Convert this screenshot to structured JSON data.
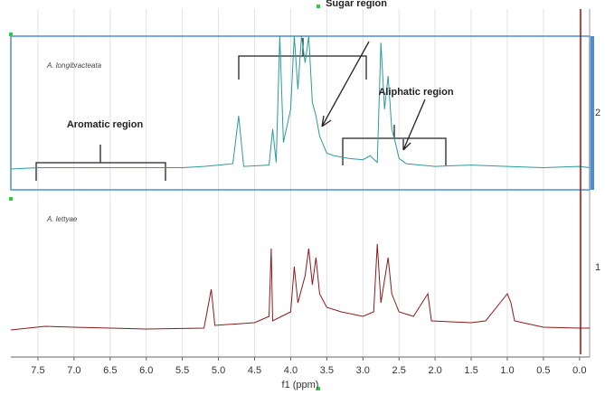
{
  "chart_data": {
    "type": "line",
    "x_label": "f1 (ppm)",
    "xlim": [
      7.875,
      -0.14
    ],
    "xticks": [
      7.5,
      {
        "value": 7,
        "label": "7.0"
      },
      6.5,
      {
        "value": 6,
        "label": "6.0"
      },
      5.5,
      {
        "value": 5,
        "label": "5.0"
      },
      4.5,
      {
        "value": 4,
        "label": "4.0"
      },
      3.5,
      {
        "value": 3,
        "label": "3.0"
      },
      2.5,
      {
        "value": 2,
        "label": "2.0"
      },
      1.5,
      {
        "value": 1,
        "label": "1.0"
      },
      0.5,
      {
        "value": 0,
        "label": "0.0"
      }
    ],
    "annotations": [
      "Sugar region",
      "Aromatic region",
      "Aliphatic region"
    ],
    "series": [
      {
        "name": "A. longibracteata",
        "label": "2",
        "color": "#2e9a9a",
        "x": [
          7.875,
          7.5,
          6.8,
          6.0,
          5.5,
          5.2,
          5.0,
          4.8,
          4.72,
          4.65,
          4.3,
          4.25,
          4.2,
          4.15,
          4.1,
          4.0,
          3.95,
          3.9,
          3.85,
          3.8,
          3.75,
          3.7,
          3.65,
          3.6,
          3.5,
          3.4,
          3.2,
          3.0,
          2.9,
          2.8,
          2.75,
          2.7,
          2.65,
          2.6,
          2.55,
          2.5,
          2.4,
          2.0,
          1.5,
          1.0,
          0.5,
          0.0,
          -0.14
        ],
        "values": [
          0,
          1,
          1,
          1,
          1,
          2,
          3,
          4,
          40,
          2,
          3,
          30,
          5,
          100,
          20,
          45,
          100,
          60,
          100,
          80,
          100,
          50,
          40,
          25,
          12,
          10,
          8,
          7,
          10,
          5,
          95,
          45,
          70,
          30,
          20,
          8,
          4,
          2,
          3,
          2,
          1,
          2,
          1
        ]
      },
      {
        "name": "A. lettyae",
        "label": "1",
        "color": "#8b1a1a",
        "x": [
          7.875,
          7.4,
          7.0,
          6.0,
          5.2,
          5.1,
          5.05,
          4.5,
          4.3,
          4.27,
          4.25,
          4.0,
          3.95,
          3.9,
          3.8,
          3.75,
          3.7,
          3.65,
          3.6,
          3.5,
          3.3,
          3.0,
          2.85,
          2.8,
          2.75,
          2.65,
          2.6,
          2.5,
          2.3,
          2.1,
          2.05,
          1.5,
          1.3,
          1.0,
          0.95,
          0.9,
          0.5,
          0.0,
          -0.14
        ],
        "values": [
          0,
          4,
          3,
          1,
          2,
          45,
          5,
          8,
          15,
          90,
          10,
          20,
          70,
          30,
          60,
          90,
          50,
          80,
          40,
          25,
          20,
          15,
          20,
          95,
          30,
          80,
          40,
          20,
          15,
          40,
          10,
          8,
          10,
          40,
          30,
          10,
          3,
          2,
          2
        ]
      }
    ]
  }
}
